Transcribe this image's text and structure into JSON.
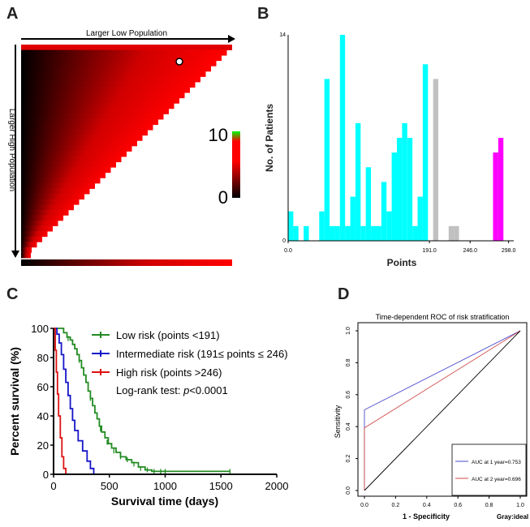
{
  "panels": {
    "a": "A",
    "b": "B",
    "c": "C",
    "d": "D"
  },
  "chart_data": [
    {
      "panel": "A",
      "type": "heatmap",
      "top_label": "Larger Low Population",
      "left_label": "Larger High Population",
      "colorbar": {
        "max_label": "10",
        "min_label": "0",
        "colors": [
          "#000000",
          "#ff0000",
          "#00ff00"
        ]
      }
    },
    {
      "panel": "B",
      "type": "bar",
      "ylabel": "No. of Patients",
      "xlabel": "Points",
      "ytick_labels": [
        "0",
        "14"
      ],
      "xtick_labels": [
        "0.0",
        "191.0",
        "246.0",
        "298.0"
      ],
      "ylim": [
        0,
        14
      ],
      "xlim": [
        0,
        305
      ],
      "bin_width": 7,
      "bars": [
        {
          "x": 0,
          "v": 2,
          "color": "#00ffff"
        },
        {
          "x": 7,
          "v": 1,
          "color": "#00ffff"
        },
        {
          "x": 21,
          "v": 1,
          "color": "#00ffff"
        },
        {
          "x": 42,
          "v": 2,
          "color": "#00ffff"
        },
        {
          "x": 49,
          "v": 11,
          "color": "#00ffff"
        },
        {
          "x": 56,
          "v": 1,
          "color": "#00ffff"
        },
        {
          "x": 63,
          "v": 1,
          "color": "#00ffff"
        },
        {
          "x": 70,
          "v": 14,
          "color": "#00ffff"
        },
        {
          "x": 77,
          "v": 1,
          "color": "#00ffff"
        },
        {
          "x": 84,
          "v": 3,
          "color": "#00ffff"
        },
        {
          "x": 91,
          "v": 8,
          "color": "#00ffff"
        },
        {
          "x": 98,
          "v": 1,
          "color": "#00ffff"
        },
        {
          "x": 105,
          "v": 5,
          "color": "#00ffff"
        },
        {
          "x": 112,
          "v": 1,
          "color": "#00ffff"
        },
        {
          "x": 119,
          "v": 1,
          "color": "#00ffff"
        },
        {
          "x": 126,
          "v": 4,
          "color": "#00ffff"
        },
        {
          "x": 133,
          "v": 2,
          "color": "#00ffff"
        },
        {
          "x": 140,
          "v": 6,
          "color": "#00ffff"
        },
        {
          "x": 147,
          "v": 7,
          "color": "#00ffff"
        },
        {
          "x": 154,
          "v": 8,
          "color": "#00ffff"
        },
        {
          "x": 161,
          "v": 7,
          "color": "#00ffff"
        },
        {
          "x": 168,
          "v": 1,
          "color": "#00ffff"
        },
        {
          "x": 175,
          "v": 3,
          "color": "#00ffff"
        },
        {
          "x": 182,
          "v": 12,
          "color": "#00ffff"
        },
        {
          "x": 196,
          "v": 11,
          "color": "#c0c0c0"
        },
        {
          "x": 217,
          "v": 1,
          "color": "#c0c0c0"
        },
        {
          "x": 224,
          "v": 1,
          "color": "#c0c0c0"
        },
        {
          "x": 277,
          "v": 6,
          "color": "#ff00ff"
        },
        {
          "x": 284,
          "v": 7,
          "color": "#ff00ff"
        }
      ]
    },
    {
      "panel": "C",
      "type": "line",
      "ylabel": "Percent survival (%)",
      "xlabel": "Survival time (days)",
      "xlim": [
        0,
        2000
      ],
      "ylim": [
        0,
        100
      ],
      "xticks": [
        0,
        500,
        1000,
        1500,
        2000
      ],
      "yticks": [
        0,
        20,
        40,
        60,
        80,
        100
      ],
      "legend": {
        "entries": [
          "Low risk (points <191)",
          "Intermediate risk (191≤ points ≤ 246)",
          "High risk (points >246)"
        ],
        "note_prefix": "Log-rank test: ",
        "note_p": "p",
        "note_suffix": "<0.0001"
      },
      "series": [
        {
          "name": "Low risk (points <191)",
          "color": "#228b22",
          "points": [
            [
              0,
              100
            ],
            [
              60,
              100
            ],
            [
              90,
              97
            ],
            [
              120,
              94
            ],
            [
              150,
              92
            ],
            [
              170,
              89
            ],
            [
              190,
              86
            ],
            [
              210,
              82
            ],
            [
              230,
              78
            ],
            [
              250,
              73
            ],
            [
              270,
              68
            ],
            [
              290,
              63
            ],
            [
              310,
              57
            ],
            [
              330,
              52
            ],
            [
              350,
              47
            ],
            [
              370,
              42
            ],
            [
              390,
              38
            ],
            [
              410,
              33
            ],
            [
              430,
              29
            ],
            [
              460,
              25
            ],
            [
              490,
              21
            ],
            [
              520,
              18
            ],
            [
              560,
              15
            ],
            [
              600,
              12
            ],
            [
              650,
              10
            ],
            [
              700,
              8
            ],
            [
              760,
              5
            ],
            [
              820,
              3
            ],
            [
              880,
              2
            ],
            [
              960,
              2
            ],
            [
              1050,
              2
            ],
            [
              1150,
              2
            ],
            [
              1300,
              2
            ],
            [
              1580,
              2
            ]
          ],
          "censors": [
            [
              130,
              93
            ],
            [
              230,
              78
            ],
            [
              330,
              52
            ],
            [
              420,
              31
            ],
            [
              480,
              22
            ],
            [
              540,
              16
            ],
            [
              600,
              12
            ],
            [
              660,
              10
            ],
            [
              720,
              7
            ],
            [
              780,
              4
            ],
            [
              840,
              3
            ],
            [
              900,
              2
            ],
            [
              960,
              2
            ],
            [
              1000,
              2
            ],
            [
              1580,
              2
            ]
          ]
        },
        {
          "name": "Intermediate risk (191≤ points ≤ 246)",
          "color": "#1515c8",
          "points": [
            [
              0,
              100
            ],
            [
              30,
              96
            ],
            [
              50,
              90
            ],
            [
              70,
              82
            ],
            [
              90,
              72
            ],
            [
              110,
              63
            ],
            [
              130,
              54
            ],
            [
              150,
              45
            ],
            [
              170,
              37
            ],
            [
              190,
              30
            ],
            [
              220,
              23
            ],
            [
              260,
              16
            ],
            [
              300,
              9
            ],
            [
              330,
              4
            ],
            [
              360,
              0
            ]
          ],
          "censors": []
        },
        {
          "name": "High risk (points >246)",
          "color": "#dd1111",
          "points": [
            [
              0,
              100
            ],
            [
              15,
              85
            ],
            [
              25,
              70
            ],
            [
              35,
              55
            ],
            [
              45,
              40
            ],
            [
              60,
              25
            ],
            [
              75,
              12
            ],
            [
              90,
              4
            ],
            [
              110,
              0
            ]
          ],
          "censors": []
        }
      ]
    },
    {
      "panel": "D",
      "type": "line",
      "title": "Time-dependent ROC of risk stratification",
      "xlabel": "1 - Specificity",
      "ylabel": "Sensitivity",
      "note": "Gray:ideal",
      "xlim": [
        0,
        1
      ],
      "ylim": [
        0,
        1
      ],
      "xticks": [
        "0.0",
        "0.2",
        "0.4",
        "0.6",
        "0.8",
        "1.0"
      ],
      "yticks": [
        "0.0",
        "0.2",
        "0.4",
        "0.6",
        "0.8",
        "1.0"
      ],
      "series": [
        {
          "name": "AUC at 1 year=0.753",
          "color": "#4a4acd",
          "points": [
            [
              0,
              0
            ],
            [
              0,
              0.505
            ],
            [
              1,
              1
            ]
          ]
        },
        {
          "name": "AUC at 2 year=0.696",
          "color": "#d04848",
          "points": [
            [
              0,
              0
            ],
            [
              0,
              0.392
            ],
            [
              1,
              1
            ]
          ]
        },
        {
          "name": "ideal",
          "color": "#000000",
          "points": [
            [
              0,
              0
            ],
            [
              1,
              1
            ]
          ]
        }
      ],
      "legend": [
        "AUC at 1 year=0.753",
        "AUC at 2 year=0.696"
      ]
    }
  ]
}
